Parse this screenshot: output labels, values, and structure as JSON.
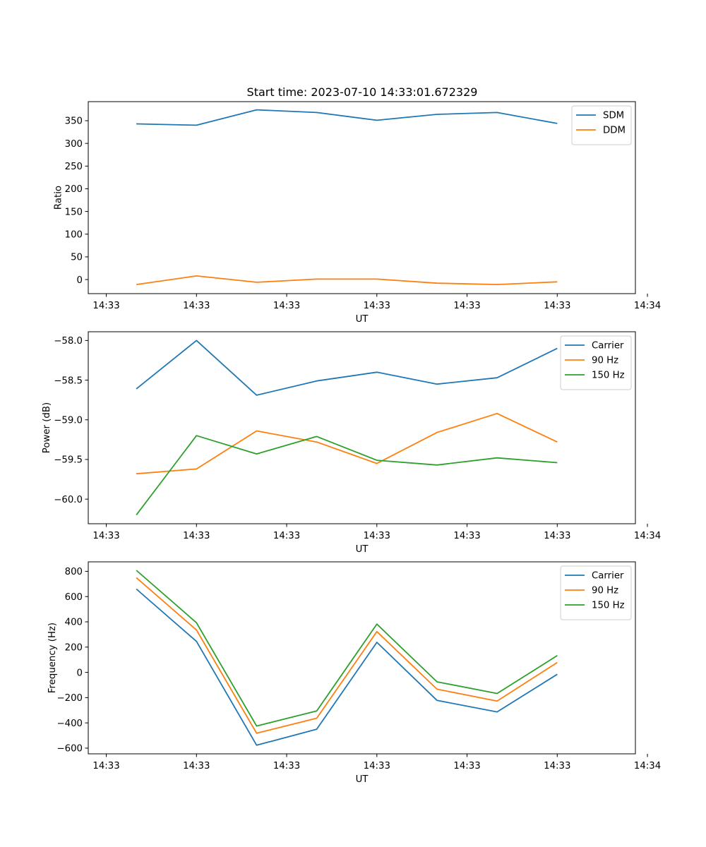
{
  "figure": {
    "title": "Start time: 2023-07-10 14:33:01.672329"
  },
  "colors": {
    "blue": "#1f77b4",
    "orange": "#ff7f0e",
    "green": "#2ca02c"
  },
  "chart_data": [
    {
      "type": "line",
      "title": "Start time: 2023-07-10 14:33:01.672329",
      "xlabel": "UT",
      "ylabel": "Ratio",
      "x": [
        1,
        2,
        3,
        4,
        5,
        6,
        7,
        8
      ],
      "xlim": [
        0.2,
        9.3
      ],
      "x_ticks": [
        0.5,
        2,
        3.5,
        5,
        6.5,
        8,
        9.5
      ],
      "x_tick_labels": [
        "14:33",
        "14:33",
        "14:33",
        "14:33",
        "14:33",
        "14:33",
        "14:34"
      ],
      "ylim": [
        -31,
        392
      ],
      "y_ticks": [
        0,
        50,
        100,
        150,
        200,
        250,
        300,
        350
      ],
      "y_tick_labels": [
        "0",
        "50",
        "100",
        "150",
        "200",
        "250",
        "300",
        "350"
      ],
      "legend": "top-right",
      "grid": false,
      "series": [
        {
          "name": "SDM",
          "color": "#1f77b4",
          "values": [
            343,
            340,
            374,
            368,
            351,
            364,
            368,
            344
          ]
        },
        {
          "name": "DDM",
          "color": "#ff7f0e",
          "values": [
            -11,
            8,
            -6,
            1,
            1,
            -8,
            -11,
            -5
          ]
        }
      ]
    },
    {
      "type": "line",
      "xlabel": "UT",
      "ylabel": "Power (dB)",
      "x": [
        1,
        2,
        3,
        4,
        5,
        6,
        7,
        8
      ],
      "xlim": [
        0.2,
        9.3
      ],
      "x_ticks": [
        0.5,
        2,
        3.5,
        5,
        6.5,
        8,
        9.5
      ],
      "x_tick_labels": [
        "14:33",
        "14:33",
        "14:33",
        "14:33",
        "14:33",
        "14:33",
        "14:34"
      ],
      "ylim": [
        -60.31,
        -57.89
      ],
      "y_ticks": [
        -60.0,
        -59.5,
        -59.0,
        -58.5,
        -58.0
      ],
      "y_tick_labels": [
        "−60.0",
        "−59.5",
        "−59.0",
        "−58.5",
        "−58.0"
      ],
      "legend": "top-right",
      "grid": false,
      "series": [
        {
          "name": "Carrier",
          "color": "#1f77b4",
          "values": [
            -58.61,
            -58.0,
            -58.69,
            -58.51,
            -58.4,
            -58.55,
            -58.47,
            -58.1
          ]
        },
        {
          "name": "90 Hz",
          "color": "#ff7f0e",
          "values": [
            -59.68,
            -59.62,
            -59.14,
            -59.28,
            -59.55,
            -59.16,
            -58.92,
            -59.28
          ]
        },
        {
          "name": "150 Hz",
          "color": "#2ca02c",
          "values": [
            -60.2,
            -59.2,
            -59.43,
            -59.21,
            -59.51,
            -59.57,
            -59.48,
            -59.54
          ]
        }
      ]
    },
    {
      "type": "line",
      "xlabel": "UT",
      "ylabel": "Frequency (Hz)",
      "x": [
        1,
        2,
        3,
        4,
        5,
        6,
        7,
        8
      ],
      "xlim": [
        0.2,
        9.3
      ],
      "x_ticks": [
        0.5,
        2,
        3.5,
        5,
        6.5,
        8,
        9.5
      ],
      "x_tick_labels": [
        "14:33",
        "14:33",
        "14:33",
        "14:33",
        "14:33",
        "14:33",
        "14:34"
      ],
      "ylim": [
        -645,
        875
      ],
      "y_ticks": [
        -600,
        -400,
        -200,
        0,
        200,
        400,
        600,
        800
      ],
      "y_tick_labels": [
        "−600",
        "−400",
        "−200",
        "0",
        "200",
        "400",
        "600",
        "800"
      ],
      "legend": "top-right",
      "grid": false,
      "series": [
        {
          "name": "Carrier",
          "color": "#1f77b4",
          "values": [
            660,
            245,
            -577,
            -450,
            238,
            -222,
            -313,
            -15
          ]
        },
        {
          "name": "90 Hz",
          "color": "#ff7f0e",
          "values": [
            750,
            335,
            -482,
            -363,
            323,
            -133,
            -227,
            78
          ]
        },
        {
          "name": "150 Hz",
          "color": "#2ca02c",
          "values": [
            808,
            393,
            -425,
            -305,
            382,
            -75,
            -167,
            133
          ]
        }
      ]
    }
  ]
}
